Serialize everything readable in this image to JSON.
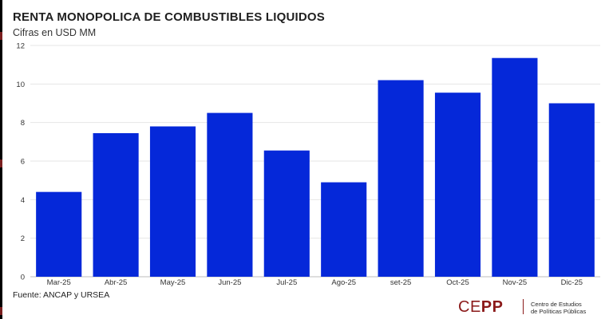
{
  "chart_data": {
    "type": "bar",
    "title": "RENTA MONOPOLICA DE COMBUSTIBLES LIQUIDOS",
    "subtitle": "Cifras en USD MM",
    "xlabel": "",
    "ylabel": "",
    "categories": [
      "Mar-25",
      "Abr-25",
      "May-25",
      "Jun-25",
      "Jul-25",
      "Ago-25",
      "set-25",
      "Oct-25",
      "Nov-25",
      "Dic-25"
    ],
    "values": [
      4.4,
      7.45,
      7.8,
      8.5,
      6.55,
      4.9,
      10.2,
      9.55,
      11.35,
      9.0
    ],
    "ylim": [
      0,
      12
    ],
    "yticks": [
      0,
      2,
      4,
      6,
      8,
      10,
      12
    ],
    "grid": true,
    "bar_color": "#0528d9",
    "source": "Fuente: ANCAP y URSEA"
  },
  "brand": {
    "logo_ce": "CE",
    "logo_pp": "PP",
    "line1": "Centro de Estudios",
    "line2": "de Políticas Públicas",
    "color": "#8b1a1a"
  }
}
